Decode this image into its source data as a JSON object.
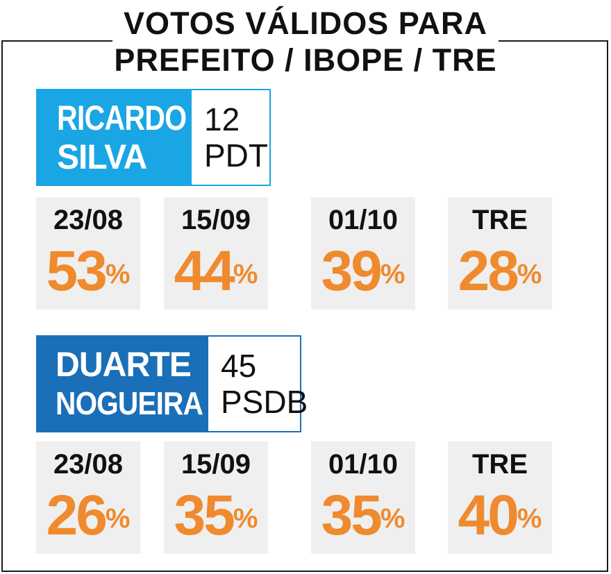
{
  "title": {
    "line1": "VOTOS VÁLIDOS PARA",
    "line2": "PREFEITO / IBOPE / TRE"
  },
  "colors": {
    "candidate_1": "#1aa6e4",
    "candidate_2": "#1a6fb8",
    "value": "#ef8a2e",
    "card_bg": "#efefef"
  },
  "candidates": [
    {
      "name_line1": "RICARDO",
      "name_line2": "SILVA",
      "number": "12",
      "party": "PDT",
      "columns": [
        {
          "date": "23/08",
          "value": "53",
          "unit": "%"
        },
        {
          "date": "15/09",
          "value": "44",
          "unit": "%"
        },
        {
          "date": "01/10",
          "value": "39",
          "unit": "%"
        },
        {
          "date": "TRE",
          "value": "28",
          "unit": "%"
        }
      ]
    },
    {
      "name_line1": "DUARTE",
      "name_line2": "NOGUEIRA",
      "number": "45",
      "party": "PSDB",
      "columns": [
        {
          "date": "23/08",
          "value": "26",
          "unit": "%"
        },
        {
          "date": "15/09",
          "value": "35",
          "unit": "%"
        },
        {
          "date": "01/10",
          "value": "35",
          "unit": "%"
        },
        {
          "date": "TRE",
          "value": "40",
          "unit": "%"
        }
      ]
    }
  ],
  "chart_data": {
    "type": "table",
    "title": "VOTOS VÁLIDOS PARA PREFEITO / IBOPE / TRE",
    "categories": [
      "23/08",
      "15/09",
      "01/10",
      "TRE"
    ],
    "series": [
      {
        "name": "RICARDO SILVA",
        "values": [
          53,
          44,
          39,
          28
        ]
      },
      {
        "name": "DUARTE NOGUEIRA",
        "values": [
          26,
          35,
          35,
          40
        ]
      }
    ]
  }
}
